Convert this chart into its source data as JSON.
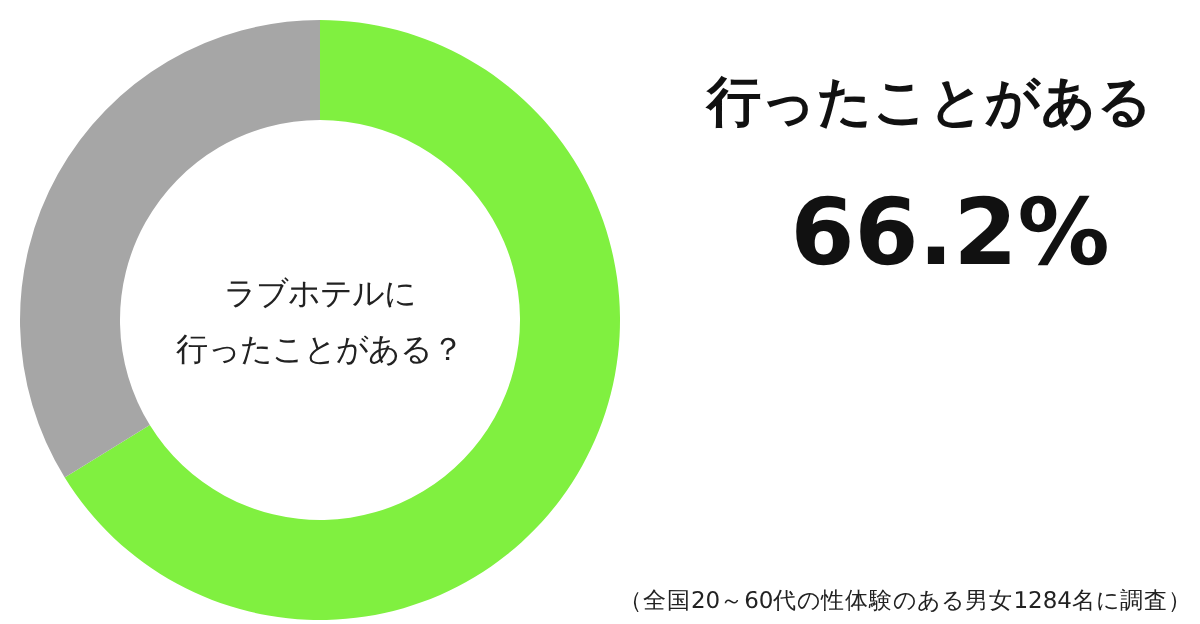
{
  "chart_data": {
    "type": "donut",
    "title": "ラブホテルに",
    "subtitle": "行ったことがある？",
    "categories": [
      "行ったことがある",
      null
    ],
    "values": [
      66.2,
      33.8
    ],
    "colors": [
      "#80f040",
      "#a6a6a6"
    ],
    "value_labels": [
      "66.2%",
      null
    ],
    "annotations": [
      "（全国20～60代の性体験のある男女1284名に調査）"
    ]
  }
}
